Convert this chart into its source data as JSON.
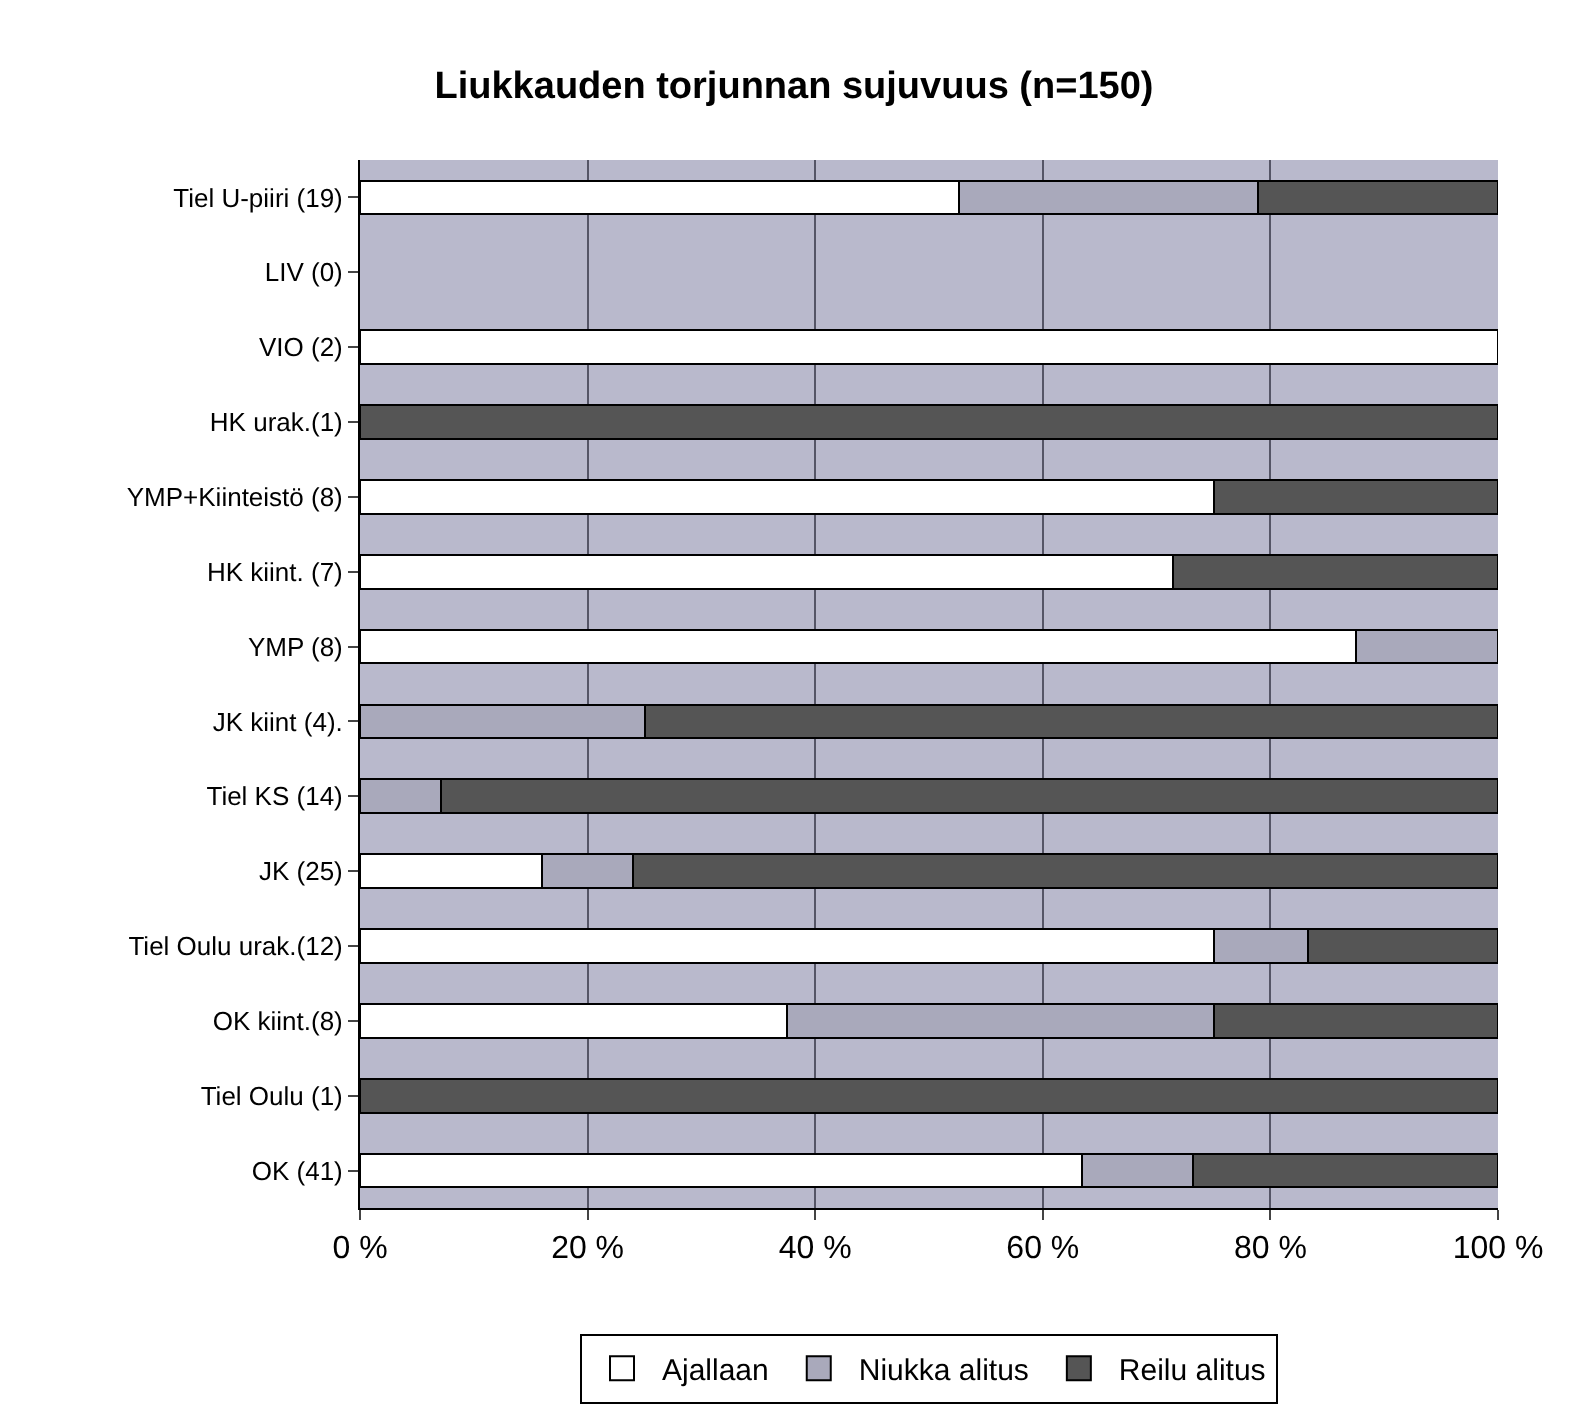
{
  "chart_data": {
    "type": "bar",
    "orientation": "horizontal",
    "stacked": true,
    "title": "Liukkauden torjunnan sujuvuus (n=150)",
    "categories": [
      "Tiel U-piiri (19)",
      "LIV (0)",
      "VIO (2)",
      "HK urak.(1)",
      "YMP+Kiinteistö (8)",
      "HK kiint. (7)",
      "YMP (8)",
      "JK kiint (4).",
      "Tiel KS (14)",
      "JK (25)",
      "Tiel Oulu urak.(12)",
      "OK kiint.(8)",
      "Tiel Oulu (1)",
      "OK (41)"
    ],
    "series": [
      {
        "name": "Ajallaan",
        "color": "#ffffff",
        "values": [
          52.6,
          null,
          100,
          0,
          75,
          71.4,
          87.5,
          0,
          0,
          16,
          75,
          37.5,
          0,
          63.4
        ]
      },
      {
        "name": "Niukka alitus",
        "color": "#a9a9bb",
        "values": [
          26.3,
          null,
          0,
          0,
          0,
          0,
          12.5,
          25,
          7.1,
          8,
          8.3,
          37.5,
          0,
          9.8
        ]
      },
      {
        "name": "Reilu alitus",
        "color": "#555555",
        "values": [
          21.1,
          null,
          0,
          100,
          25,
          28.6,
          0,
          75,
          92.9,
          76,
          16.7,
          25,
          100,
          26.8
        ]
      }
    ],
    "xlim": [
      0,
      100
    ],
    "xticks": [
      {
        "value": 0,
        "label": "0 %"
      },
      {
        "value": 20,
        "label": "20 %"
      },
      {
        "value": 40,
        "label": "40 %"
      },
      {
        "value": 60,
        "label": "60 %"
      },
      {
        "value": 80,
        "label": "80 %"
      },
      {
        "value": 100,
        "label": "100 %"
      }
    ],
    "grid": "x",
    "legend": "bottom"
  }
}
